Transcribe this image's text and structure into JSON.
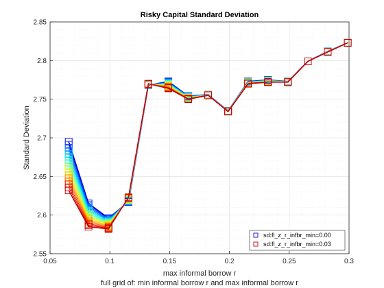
{
  "chart_data": {
    "type": "line",
    "title": "Risky Capital Standard Deviation",
    "xlabel": "max informal borrow r",
    "xlabel2": "full grid of: min informal borrow r and max informal borrow r",
    "ylabel": "Standard Deviation",
    "xlim": [
      0.05,
      0.3
    ],
    "ylim": [
      2.55,
      2.85
    ],
    "xticks": [
      "0.05",
      "0.1",
      "0.15",
      "0.2",
      "0.25",
      "0.3"
    ],
    "yticks": [
      "2.55",
      "2.6",
      "2.65",
      "2.7",
      "2.75",
      "2.8",
      "2.85"
    ],
    "grid": true,
    "legend_position": "bottom-right",
    "x": [
      0.0656,
      0.0822,
      0.0989,
      0.1156,
      0.1322,
      0.1489,
      0.1656,
      0.1822,
      0.1989,
      0.2156,
      0.2322,
      0.2489,
      0.2656,
      0.2822,
      0.2989
    ],
    "series": [
      {
        "name": "sd:fl_z_r_infbr_min=0.00",
        "color": "#0000d0",
        "values": [
          2.695,
          2.615,
          2.596,
          2.617,
          2.768,
          2.773,
          2.754,
          2.756,
          2.735,
          2.773,
          2.775,
          2.773,
          2.799,
          2.812,
          2.823
        ]
      },
      {
        "name": "sd:fl_z_r_infbr_min=0.03",
        "color": "#c00000",
        "values": [
          2.632,
          2.585,
          2.582,
          2.623,
          2.77,
          2.764,
          2.75,
          2.755,
          2.734,
          2.77,
          2.772,
          2.772,
          2.799,
          2.811,
          2.823
        ]
      }
    ],
    "gradient_curves": 17,
    "gradient_colors": [
      "#0000d0",
      "#0030ff",
      "#0070ff",
      "#00b0ff",
      "#00e0ff",
      "#30ffd0",
      "#70ff90",
      "#b0ff50",
      "#f0f000",
      "#ffc000",
      "#ff8000",
      "#ff4000",
      "#e00000",
      "#c00000"
    ]
  }
}
